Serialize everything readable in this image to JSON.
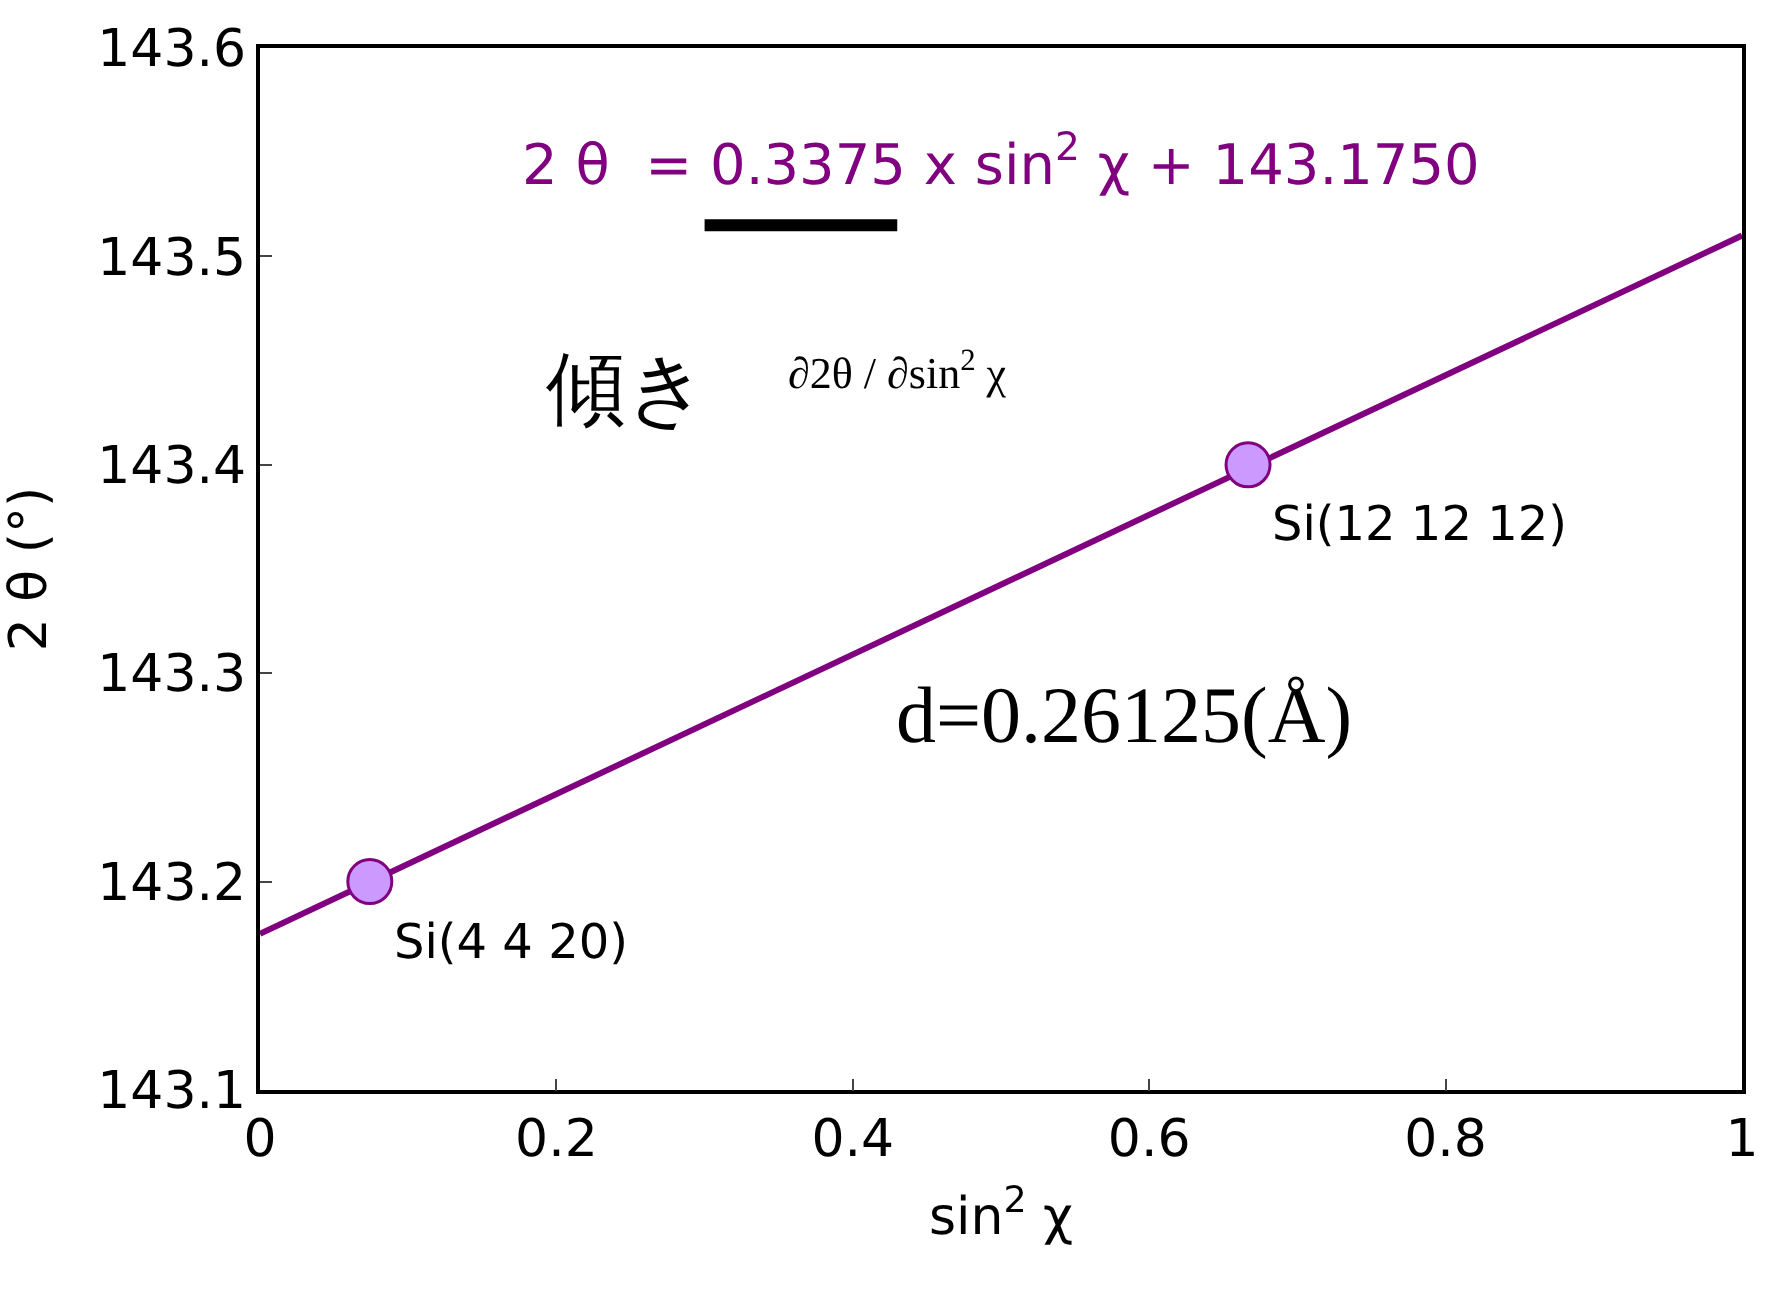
{
  "chart_data": {
    "type": "scatter",
    "xlabel": "sin$^{2}$ χ",
    "ylabel": "2 θ (°)",
    "xlim": [
      0,
      1
    ],
    "xticks": [
      0,
      0.2,
      0.4,
      0.6,
      0.8,
      1
    ],
    "ylim": [
      143.1,
      143.6
    ],
    "yticks": [
      143.1,
      143.2,
      143.3,
      143.4,
      143.5,
      143.6
    ],
    "series": [
      {
        "type": "line",
        "color": "#800080",
        "x": [
          0,
          1
        ],
        "values": [
          143.175,
          143.51
        ],
        "marker": "none",
        "line_style": "solid"
      },
      {
        "color": "#cc99ff",
        "x": [
          0.0741,
          0.6667
        ],
        "values": [
          143.2,
          143.4
        ],
        "marker": "circle"
      }
    ],
    "annotations": [
      "2 θ  = 0.3375 x sin$^{2}$ χ + 143.1750",
      "傾き",
      "∂2θ / ∂sin$^{2}$ χ",
      "d=0.26125(Å)",
      {
        "text": "Si(12 12 12)",
        "x": 0.6667,
        "y": 143.4
      },
      {
        "text": "Si(4 4 20)",
        "x": 0.0741,
        "y": 143.2
      }
    ]
  }
}
